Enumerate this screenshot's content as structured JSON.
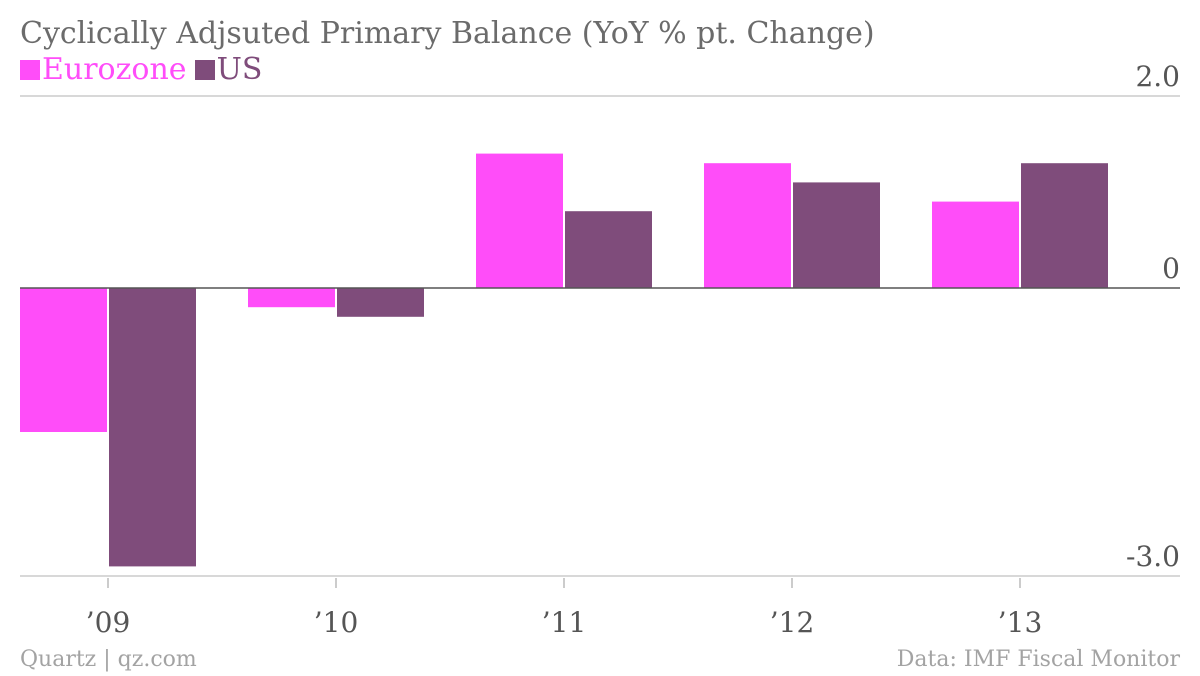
{
  "title": "Cyclically Adjsuted Primary Balance (YoY % pt. Change)",
  "footer": {
    "source_left": "Quartz | qz.com",
    "source_right": "Data: IMF Fiscal Monitor"
  },
  "colors": {
    "eurozone": "#ff4df9",
    "us": "#7f4c7b",
    "axis": "#555555",
    "grid": "#cccccc"
  },
  "chart_data": {
    "type": "bar",
    "title": "Cyclically Adjsuted Primary Balance (YoY % pt. Change)",
    "categories": [
      "’09",
      "’10",
      "’11",
      "’12",
      "’13"
    ],
    "series": [
      {
        "name": "Eurozone",
        "color": "#ff4df9",
        "values": [
          -1.5,
          -0.2,
          1.4,
          1.3,
          0.9
        ]
      },
      {
        "name": "US",
        "color": "#7f4c7b",
        "values": [
          -2.9,
          -0.3,
          0.8,
          1.1,
          1.3
        ]
      }
    ],
    "ylim": [
      -3.0,
      2.0
    ],
    "yticks": [
      {
        "value": 2.0,
        "label": "2.0"
      },
      {
        "value": 0,
        "label": "0"
      },
      {
        "value": -3.0,
        "label": "-3.0"
      }
    ],
    "grid": true,
    "legend": "top-left",
    "xlabel": "",
    "ylabel": ""
  }
}
